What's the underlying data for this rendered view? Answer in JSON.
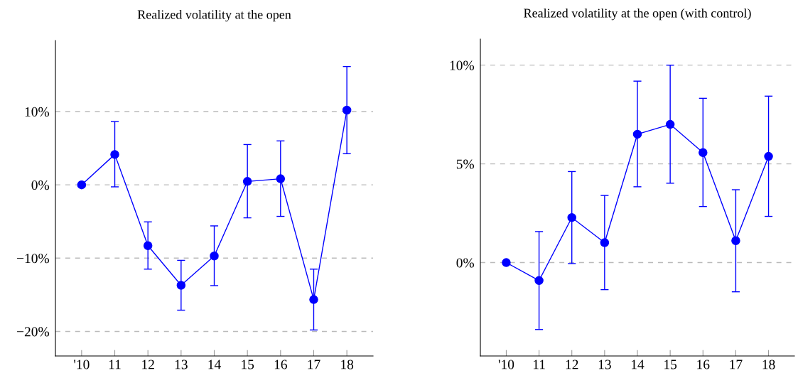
{
  "chart_data": [
    {
      "type": "line",
      "title": "Realized volatility at the open",
      "categories": [
        "'10",
        "11",
        "12",
        "13",
        "14",
        "15",
        "16",
        "17",
        "18"
      ],
      "series": [
        {
          "color": "#0000ff",
          "values": [
            0,
            4.15,
            -8.3,
            -13.7,
            -9.7,
            0.47,
            0.83,
            -15.65,
            10.2
          ],
          "errors": [
            null,
            [
              -0.27,
              8.64
            ],
            [
              -11.5,
              -5.05
            ],
            [
              -17.1,
              -10.3
            ],
            [
              -13.75,
              -5.6
            ],
            [
              -4.5,
              5.5
            ],
            [
              -4.3,
              6.0
            ],
            [
              -19.8,
              -11.5
            ],
            [
              4.25,
              16.15
            ]
          ]
        }
      ],
      "ylim": [
        -23.35,
        19.7
      ],
      "yticks": [
        {
          "value": -20,
          "label": "−20%"
        },
        {
          "value": -10,
          "label": "−10%"
        },
        {
          "value": 0,
          "label": "0%"
        },
        {
          "value": 10,
          "label": "10%"
        }
      ],
      "grid": "y",
      "marker": "circle",
      "line_style": "solid"
    },
    {
      "type": "line",
      "title": "Realized volatility at the open (with control)",
      "categories": [
        "'10",
        "11",
        "12",
        "13",
        "14",
        "15",
        "16",
        "17",
        "18"
      ],
      "series": [
        {
          "color": "#0000ff",
          "values": [
            0,
            -0.91,
            2.28,
            1.01,
            6.5,
            7.0,
            5.57,
            1.11,
            5.38
          ],
          "errors": [
            null,
            [
              -3.39,
              1.57
            ],
            [
              -0.05,
              4.61
            ],
            [
              -1.37,
              3.4
            ],
            [
              3.84,
              9.19
            ],
            [
              4.02,
              10.0
            ],
            [
              2.84,
              8.32
            ],
            [
              -1.48,
              3.69
            ],
            [
              2.34,
              8.43
            ]
          ]
        }
      ],
      "ylim": [
        -4.73,
        11.32
      ],
      "yticks": [
        {
          "value": 0,
          "label": "0%"
        },
        {
          "value": 5,
          "label": "5%"
        },
        {
          "value": 10,
          "label": "10%"
        }
      ],
      "grid": "y",
      "marker": "circle",
      "line_style": "solid"
    }
  ]
}
